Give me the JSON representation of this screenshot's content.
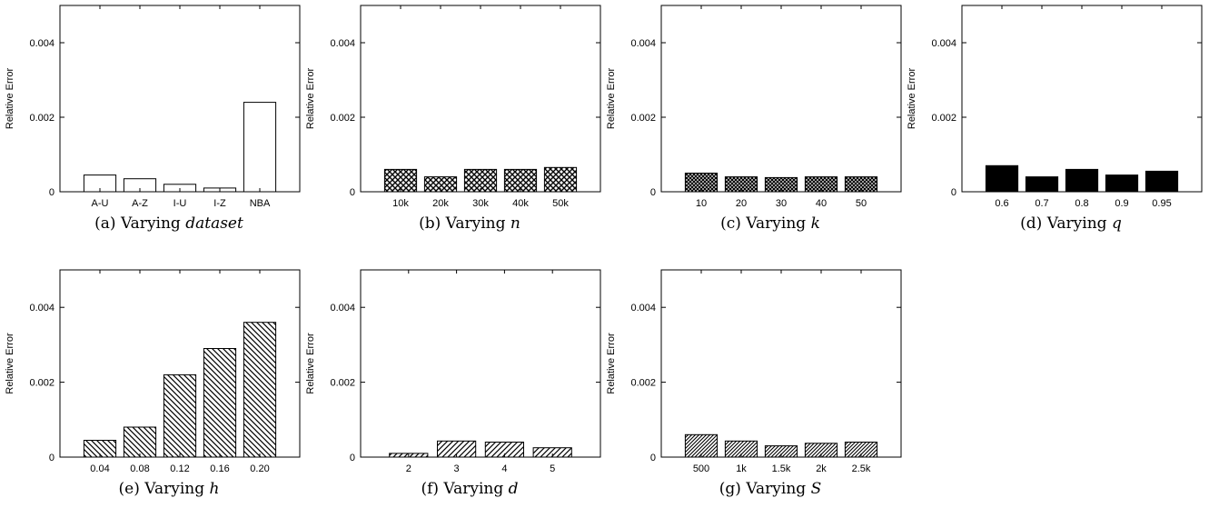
{
  "chart_data": [
    {
      "type": "bar",
      "caption": {
        "prefix": "(a) Varying ",
        "variable": "dataset"
      },
      "ylabel": "Relative Error",
      "ylim": [
        0,
        0.005
      ],
      "yticks": [
        {
          "value": 0,
          "label": "0"
        },
        {
          "value": 0.002,
          "label": "0.002"
        },
        {
          "value": 0.004,
          "label": "0.004"
        }
      ],
      "categories": [
        "A-U",
        "A-Z",
        "I-U",
        "I-Z",
        "NBA"
      ],
      "values": [
        0.00045,
        0.00035,
        0.0002,
        0.0001,
        0.0024
      ],
      "fill": "white"
    },
    {
      "type": "bar",
      "caption": {
        "prefix": "(b) Varying ",
        "variable": "n"
      },
      "ylabel": "Relative Error",
      "ylim": [
        0,
        0.005
      ],
      "yticks": [
        {
          "value": 0,
          "label": "0"
        },
        {
          "value": 0.002,
          "label": "0.002"
        },
        {
          "value": 0.004,
          "label": "0.004"
        }
      ],
      "categories": [
        "10k",
        "20k",
        "30k",
        "40k",
        "50k"
      ],
      "values": [
        0.0006,
        0.0004,
        0.0006,
        0.0006,
        0.00065
      ],
      "fill": "crosshatch"
    },
    {
      "type": "bar",
      "caption": {
        "prefix": "(c) Varying ",
        "variable": "k"
      },
      "ylabel": "Relative Error",
      "ylim": [
        0,
        0.005
      ],
      "yticks": [
        {
          "value": 0,
          "label": "0"
        },
        {
          "value": 0.002,
          "label": "0.002"
        },
        {
          "value": 0.004,
          "label": "0.004"
        }
      ],
      "categories": [
        "10",
        "20",
        "30",
        "40",
        "50"
      ],
      "values": [
        0.0005,
        0.0004,
        0.00038,
        0.0004,
        0.0004
      ],
      "fill": "dense-crosshatch"
    },
    {
      "type": "bar",
      "caption": {
        "prefix": "(d) Varying ",
        "variable": "q"
      },
      "ylabel": "Relative Error",
      "ylim": [
        0,
        0.005
      ],
      "yticks": [
        {
          "value": 0,
          "label": "0"
        },
        {
          "value": 0.002,
          "label": "0.002"
        },
        {
          "value": 0.004,
          "label": "0.004"
        }
      ],
      "categories": [
        "0.6",
        "0.7",
        "0.8",
        "0.9",
        "0.95"
      ],
      "values": [
        0.0007,
        0.0004,
        0.0006,
        0.00045,
        0.00055
      ],
      "fill": "solid"
    },
    {
      "type": "bar",
      "caption": {
        "prefix": "(e) Varying ",
        "variable": "h"
      },
      "ylabel": "Relative Error",
      "ylim": [
        0,
        0.005
      ],
      "yticks": [
        {
          "value": 0,
          "label": "0"
        },
        {
          "value": 0.002,
          "label": "0.002"
        },
        {
          "value": 0.004,
          "label": "0.004"
        }
      ],
      "categories": [
        "0.04",
        "0.08",
        "0.12",
        "0.16",
        "0.20"
      ],
      "values": [
        0.00045,
        0.0008,
        0.0022,
        0.0029,
        0.0036
      ],
      "fill": "diag-back"
    },
    {
      "type": "bar",
      "caption": {
        "prefix": "(f) Varying ",
        "variable": "d"
      },
      "ylabel": "Relative Error",
      "ylim": [
        0,
        0.005
      ],
      "yticks": [
        {
          "value": 0,
          "label": "0"
        },
        {
          "value": 0.002,
          "label": "0.002"
        },
        {
          "value": 0.004,
          "label": "0.004"
        }
      ],
      "categories": [
        "2",
        "3",
        "4",
        "5"
      ],
      "values": [
        0.0001,
        0.00043,
        0.0004,
        0.00025
      ],
      "fill": "diag-fwd"
    },
    {
      "type": "bar",
      "caption": {
        "prefix": "(g) Varying ",
        "variable": "S"
      },
      "ylabel": "Relative Error",
      "ylim": [
        0,
        0.005
      ],
      "yticks": [
        {
          "value": 0,
          "label": "0"
        },
        {
          "value": 0.002,
          "label": "0.002"
        },
        {
          "value": 0.004,
          "label": "0.004"
        }
      ],
      "categories": [
        "500",
        "1k",
        "1.5k",
        "2k",
        "2.5k"
      ],
      "values": [
        0.0006,
        0.00043,
        0.0003,
        0.00037,
        0.0004
      ],
      "fill": "diag-fwd-dense"
    }
  ]
}
